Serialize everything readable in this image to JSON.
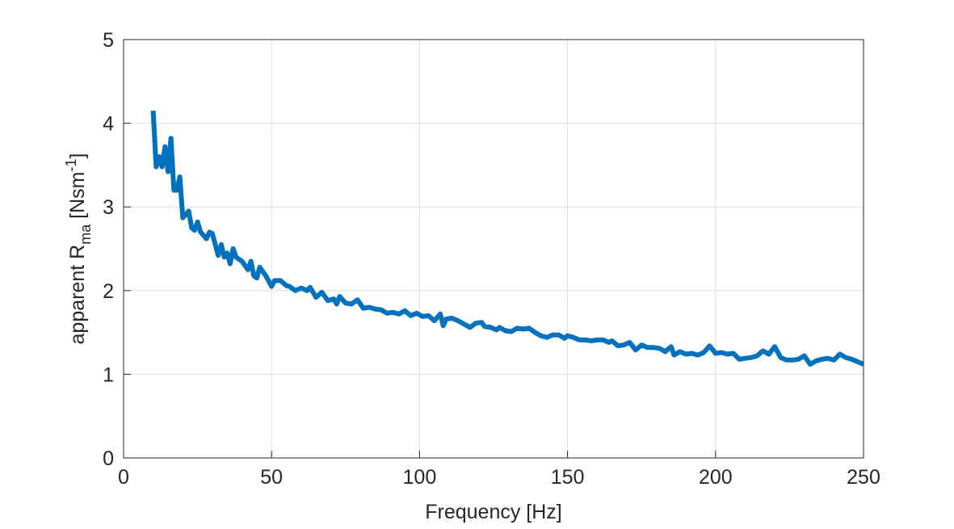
{
  "chart_data": {
    "type": "line",
    "title": "",
    "xlabel": "Frequency [Hz]",
    "ylabel": {
      "prefix": "apparent R",
      "sub": "ma",
      "mid": " [Nsm",
      "sup": "-1",
      "suffix": "]"
    },
    "xlim": [
      0,
      250
    ],
    "ylim": [
      0,
      5
    ],
    "xticks": [
      0,
      50,
      100,
      150,
      200,
      250
    ],
    "yticks": [
      0,
      1,
      2,
      3,
      4,
      5
    ],
    "grid": true,
    "line_color": "#0072BD",
    "series": [
      {
        "name": "apparent Rma",
        "x": [
          10,
          11,
          12,
          13,
          14,
          15,
          16,
          17,
          18,
          19,
          20,
          22,
          23,
          24,
          25,
          26,
          28,
          29,
          30,
          32,
          33,
          34,
          35,
          36,
          37,
          38,
          40,
          42,
          43,
          44,
          45,
          46,
          48,
          50,
          51,
          53,
          55,
          56,
          58,
          60,
          62,
          63,
          65,
          67,
          69,
          71,
          72,
          73,
          75,
          77,
          79,
          81,
          83,
          85,
          87,
          89,
          91,
          93,
          95,
          97,
          99,
          101,
          103,
          105,
          107,
          108,
          109,
          111,
          113,
          115,
          117,
          119,
          121,
          122,
          124,
          126,
          127,
          129,
          131,
          133,
          135,
          137,
          139,
          141,
          143,
          145,
          147,
          149,
          150,
          152,
          154,
          156,
          158,
          160,
          162,
          164,
          165,
          167,
          169,
          171,
          173,
          175,
          177,
          179,
          181,
          183,
          185,
          186,
          188,
          190,
          192,
          194,
          196,
          198,
          200,
          202,
          204,
          206,
          208,
          210,
          212,
          214,
          216,
          218,
          220,
          222,
          224,
          226,
          228,
          230,
          232,
          234,
          236,
          238,
          240,
          242,
          244,
          246,
          248,
          250
        ],
        "y": [
          4.15,
          3.48,
          3.6,
          3.48,
          3.72,
          3.42,
          3.82,
          3.2,
          3.2,
          3.36,
          2.87,
          2.95,
          2.75,
          2.72,
          2.82,
          2.7,
          2.62,
          2.7,
          2.68,
          2.42,
          2.55,
          2.4,
          2.45,
          2.32,
          2.5,
          2.4,
          2.35,
          2.25,
          2.35,
          2.18,
          2.15,
          2.28,
          2.18,
          2.05,
          2.12,
          2.12,
          2.06,
          2.05,
          2.0,
          2.03,
          2.0,
          2.04,
          1.92,
          1.98,
          1.88,
          1.9,
          1.84,
          1.93,
          1.85,
          1.84,
          1.89,
          1.79,
          1.8,
          1.78,
          1.77,
          1.73,
          1.74,
          1.72,
          1.76,
          1.7,
          1.73,
          1.69,
          1.7,
          1.64,
          1.72,
          1.58,
          1.66,
          1.67,
          1.64,
          1.6,
          1.56,
          1.61,
          1.62,
          1.57,
          1.56,
          1.53,
          1.56,
          1.52,
          1.51,
          1.55,
          1.54,
          1.55,
          1.5,
          1.46,
          1.44,
          1.47,
          1.47,
          1.43,
          1.46,
          1.44,
          1.41,
          1.41,
          1.4,
          1.41,
          1.41,
          1.38,
          1.4,
          1.34,
          1.35,
          1.38,
          1.29,
          1.35,
          1.32,
          1.32,
          1.31,
          1.27,
          1.33,
          1.23,
          1.27,
          1.24,
          1.25,
          1.23,
          1.26,
          1.34,
          1.25,
          1.26,
          1.24,
          1.25,
          1.18,
          1.19,
          1.2,
          1.22,
          1.28,
          1.24,
          1.33,
          1.2,
          1.17,
          1.17,
          1.18,
          1.22,
          1.12,
          1.16,
          1.18,
          1.19,
          1.17,
          1.24,
          1.2,
          1.18,
          1.15,
          1.12
        ]
      }
    ]
  }
}
